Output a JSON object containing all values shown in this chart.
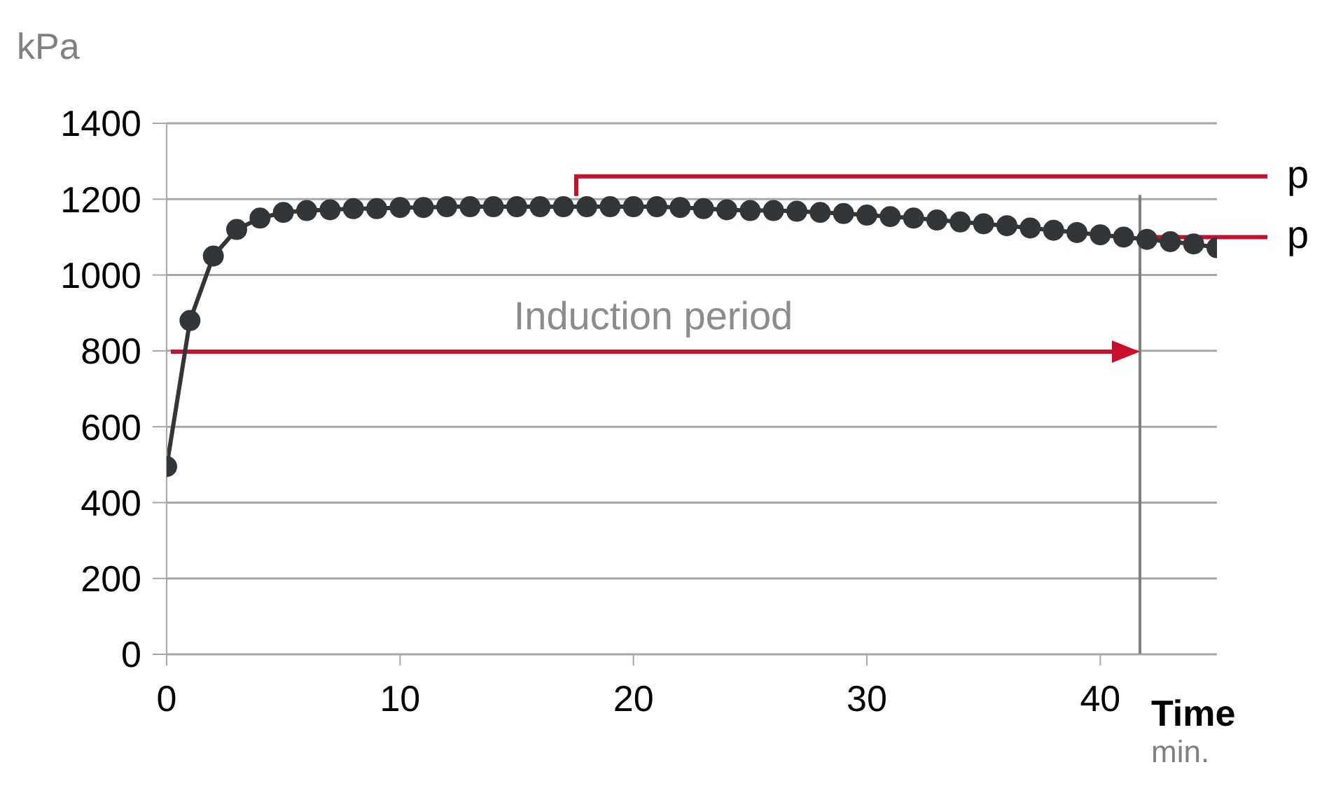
{
  "chart_data": {
    "type": "line",
    "xlabel": "Time",
    "ylabel": "kPa",
    "x": [
      0,
      1,
      2,
      3,
      4,
      5,
      6,
      7,
      8,
      9,
      10,
      11,
      12,
      13,
      14,
      15,
      16,
      17,
      18,
      19,
      20,
      21,
      22,
      23,
      24,
      25,
      26,
      27,
      28,
      29,
      30,
      31,
      32,
      33,
      34,
      35,
      36,
      37,
      38,
      39,
      40,
      41,
      42,
      43,
      44,
      45
    ],
    "series": [
      {
        "color": "#333638",
        "values": [
          495,
          880,
          1050,
          1120,
          1150,
          1165,
          1170,
          1172,
          1175,
          1175,
          1178,
          1178,
          1180,
          1180,
          1180,
          1180,
          1180,
          1180,
          1180,
          1180,
          1180,
          1180,
          1178,
          1175,
          1172,
          1170,
          1170,
          1168,
          1165,
          1162,
          1158,
          1154,
          1150,
          1145,
          1140,
          1135,
          1130,
          1124,
          1118,
          1112,
          1106,
          1100,
          1094,
          1088,
          1082,
          1072
        ]
      }
    ],
    "xlim": [
      0,
      45
    ],
    "xticks": [
      0,
      10,
      20,
      30,
      40
    ],
    "ylim": [
      0,
      1400
    ],
    "yticks": [
      0,
      200,
      400,
      600,
      800,
      1000,
      1200,
      1400
    ],
    "grid": "y",
    "marker": "circle",
    "line_style": "solid",
    "ref_lines": [
      {
        "axis": "x",
        "value": 41.7,
        "color": "#808080"
      },
      {
        "axis": "y",
        "value": 1260,
        "label": "p",
        "color": "#c8102e"
      },
      {
        "axis": "y",
        "value": 1100,
        "label": "p",
        "color": "#c8102e"
      }
    ],
    "annotations": [
      "min.",
      "Induction period"
    ]
  }
}
